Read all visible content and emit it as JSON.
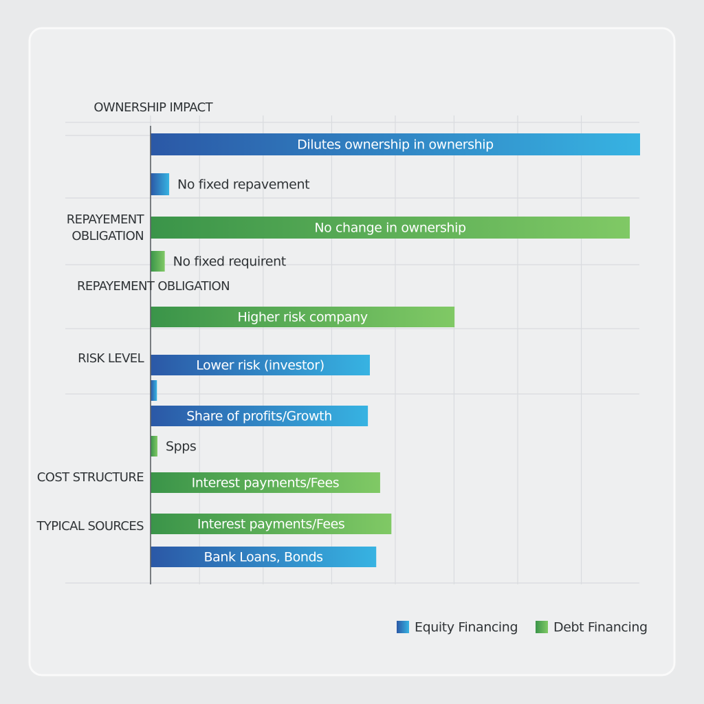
{
  "chart_data": {
    "type": "bar",
    "orientation": "horizontal",
    "series": [
      {
        "name": "Equity Financing",
        "color": "#3a8fd0",
        "gradient": [
          "#2b58a6",
          "#37b3e2"
        ],
        "values": [
          100,
          3.8,
          null,
          null,
          null,
          44.8,
          1.3,
          44.4,
          null,
          null,
          null,
          46.1
        ]
      },
      {
        "name": "Debt Financing",
        "color": "#5bb55a",
        "gradient": [
          "#3a9449",
          "#80c965"
        ],
        "values": [
          null,
          null,
          97.9,
          2.9,
          62.1,
          null,
          null,
          null,
          1.4,
          46.9,
          49.2,
          null
        ]
      }
    ],
    "bar_labels": [
      "Dilutes ownership in ownership",
      "No fixed repavement",
      "No change in ownership",
      "No fixed requirent",
      "Higher risk company",
      "Lower risk (investor)",
      null,
      "Share of profits/Growth",
      "Spps",
      "Interest payments/Fees",
      "Interest payments/Fees",
      "Bank Loans, Bonds"
    ],
    "row_labels": [
      "OWNERSHIP IMPACT",
      "REPAYEMENT OBLIGATION",
      "REPAYEMENT OBLIGATION",
      "RISK LEVEL",
      "COST STRUCTURE",
      "TYPICAL SOURCES"
    ],
    "xlim": [
      0,
      100
    ],
    "xticks": [
      0,
      10,
      23,
      37,
      50,
      62,
      75,
      88
    ],
    "grid": true
  }
}
